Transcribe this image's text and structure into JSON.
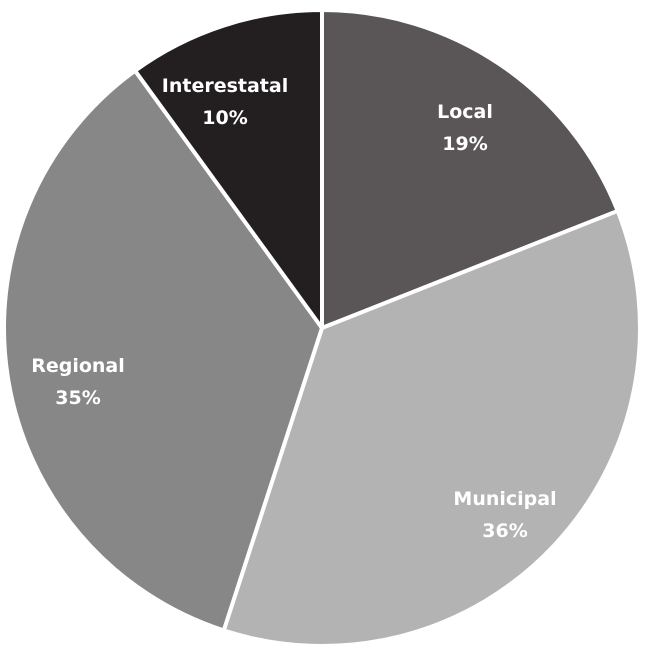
{
  "chart_data": {
    "type": "pie",
    "start": "top",
    "direction": "clockwise",
    "slices": [
      {
        "label": "Local",
        "value": 19,
        "value_label": "19%",
        "color": "#5a5557"
      },
      {
        "label": "Municipal",
        "value": 36,
        "value_label": "36%",
        "color": "#b3b3b3"
      },
      {
        "label": "Regional",
        "value": 35,
        "value_label": "35%",
        "color": "#878787"
      },
      {
        "label": "Interestatal",
        "value": 10,
        "value_label": "10%",
        "color": "#231f20"
      }
    ],
    "legend": "none",
    "labels": "inside"
  }
}
